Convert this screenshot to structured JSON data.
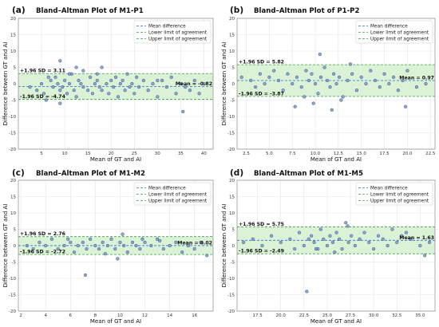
{
  "colors": {
    "point_fill": "#7f99c7",
    "point_stroke": "#2e4f8a",
    "mean_line": "#2c6fd1",
    "loa_line": "#3aa34a",
    "band_fill": "#dcf2d6",
    "grid": "#e3e3e3"
  },
  "legend_labels": [
    "Mean difference",
    "Lower limit of agreement",
    "Upper limit of agreement"
  ],
  "chart_data": [
    {
      "type": "scatter",
      "panel_label": "(a)",
      "title": "Bland–Altman Plot of M1-P1",
      "xlabel": "Mean of GT and AI",
      "ylabel": "Difference between GT and AI",
      "xlim": [
        0,
        42
      ],
      "ylim": [
        -20,
        20
      ],
      "xticks": [
        5,
        10,
        15,
        20,
        25,
        30,
        35,
        40
      ],
      "yticks": [
        -20,
        -15,
        -10,
        -5,
        0,
        5,
        10,
        15,
        20
      ],
      "mean": -0.82,
      "upper": 3.11,
      "lower": -4.74,
      "upper_label": "+1.96 SD = 3.11",
      "lower_label": "-1.96 SD = -4.74",
      "mean_label": "Mean = -0.82",
      "legend_position": "top-right",
      "grid": true,
      "x": [
        2.5,
        4,
        5,
        5.5,
        6,
        7,
        7.5,
        8,
        8.5,
        9,
        9,
        9.5,
        10,
        10.5,
        11,
        11.5,
        12,
        12.5,
        13,
        13.5,
        14,
        14,
        15,
        15.5,
        16,
        16.5,
        17,
        17.5,
        18,
        18,
        19,
        19.5,
        20,
        20.5,
        21,
        21.5,
        22,
        22.5,
        23,
        23.5,
        24,
        24.5,
        25,
        25.5,
        26,
        27,
        28,
        29,
        30,
        31,
        32,
        33,
        34,
        35,
        36,
        37,
        38,
        39,
        40,
        12.5,
        17,
        30,
        35.5,
        9,
        11,
        6.5
      ],
      "y": [
        -1,
        -2,
        0,
        -3,
        -5,
        1,
        -1,
        2,
        0,
        7,
        -2,
        -1,
        1,
        -3,
        0,
        3,
        -2,
        -4,
        1,
        0,
        -1,
        4,
        -2,
        2,
        -3,
        0,
        1,
        -1,
        5,
        -2,
        0,
        -3,
        1,
        -1,
        2,
        -4,
        0,
        1,
        -2,
        3,
        -1,
        0,
        -3,
        2,
        -1,
        1,
        -2,
        0,
        -4,
        1,
        -1,
        2,
        -3,
        0,
        -1,
        -2,
        1,
        -3,
        0,
        5,
        3,
        1,
        -8.5,
        -6,
        3,
        2
      ]
    },
    {
      "type": "scatter",
      "panel_label": "(b)",
      "title": "Bland–Altman Plot of P1-P2",
      "xlabel": "Mean of GT and AI",
      "ylabel": "Difference between GT and AI",
      "xlim": [
        1.5,
        23
      ],
      "ylim": [
        -20,
        20
      ],
      "xticks": [
        2.5,
        5.0,
        7.5,
        10.0,
        12.5,
        15.0,
        17.5,
        20.0,
        22.5
      ],
      "xtick_labels": [
        "2.5",
        "5.0",
        "7.5",
        "10.0",
        "12.5",
        "15.0",
        "17.5",
        "20.0",
        "22.5"
      ],
      "yticks": [
        -20,
        -15,
        -10,
        -5,
        0,
        5,
        10,
        15,
        20
      ],
      "mean": 0.97,
      "upper": 5.82,
      "lower": -3.87,
      "upper_label": "+1.96 SD = 5.82",
      "lower_label": "-1.96 SD = -3.87",
      "mean_label": "Mean = 0.97",
      "legend_position": "top-right",
      "grid": true,
      "x": [
        2,
        3,
        3.5,
        4,
        4.5,
        5,
        5.5,
        6,
        6.5,
        7,
        7.5,
        8,
        8.5,
        9,
        9.3,
        9.6,
        10,
        10.3,
        10.6,
        11,
        11.3,
        11.6,
        12,
        12.3,
        12.6,
        13,
        13.5,
        14,
        14.5,
        15,
        15.5,
        16,
        16.5,
        17,
        17.5,
        18,
        18.5,
        19,
        19.5,
        20,
        21,
        22,
        9.8,
        10.5,
        11.8,
        12.8,
        8.8,
        7.8,
        13.8,
        19.8
      ],
      "y": [
        2,
        1,
        -1,
        3,
        0,
        2,
        4,
        1,
        -2,
        3,
        0,
        2,
        -1,
        4,
        1,
        3,
        0,
        -3,
        2,
        5,
        1,
        -1,
        3,
        0,
        2,
        -4,
        1,
        3,
        -2,
        2,
        0,
        4,
        1,
        -1,
        3,
        0,
        2,
        -2,
        1,
        4,
        -1,
        0,
        -6,
        9,
        -8,
        -5,
        -4,
        -7,
        6,
        -7
      ]
    },
    {
      "type": "scatter",
      "panel_label": "(c)",
      "title": "Bland–Altman Plot of M1-M2",
      "xlabel": "Mean of GT and AI",
      "ylabel": "Difference between GT and AI",
      "xlim": [
        1.8,
        17.5
      ],
      "ylim": [
        -20,
        20
      ],
      "xticks": [
        2,
        4,
        6,
        8,
        10,
        12,
        14,
        16
      ],
      "yticks": [
        -20,
        -15,
        -10,
        -5,
        0,
        5,
        10,
        15,
        20
      ],
      "mean": 0.02,
      "upper": 2.76,
      "lower": -2.72,
      "upper_label": "+1.96 SD = 2.76",
      "lower_label": "-1.96 SD = -2.72",
      "mean_label": "Mean = 0.02",
      "legend_position": "top-right",
      "grid": true,
      "x": [
        2.5,
        3,
        3.5,
        4,
        4.5,
        5,
        5.5,
        6,
        6.3,
        6.6,
        7,
        7.3,
        7.6,
        8,
        8.3,
        8.6,
        9,
        9.3,
        9.6,
        10,
        10.3,
        10.6,
        11,
        11.3,
        11.6,
        12,
        12.5,
        13,
        13.5,
        14,
        14.5,
        15,
        15.5,
        16,
        16.5,
        17,
        7.2,
        10.2,
        8.8,
        11.8,
        5.8,
        9.8,
        13.2
      ],
      "y": [
        0,
        -1,
        1,
        0,
        2,
        -1,
        0,
        1,
        -2,
        0,
        1,
        -1,
        2,
        0,
        -1,
        1,
        0,
        2,
        -1,
        1,
        0,
        -2,
        1,
        0,
        -1,
        1,
        0,
        2,
        -1,
        0,
        1,
        -2,
        0,
        -1,
        1,
        -3,
        -9,
        3.5,
        -2.5,
        2,
        2,
        -4,
        1.5
      ]
    },
    {
      "type": "scatter",
      "panel_label": "(d)",
      "title": "Bland–Altman Plot of M1-M5",
      "xlabel": "Mean of GT and AI",
      "ylabel": "Difference between GT and AI",
      "xlim": [
        15.3,
        36.6
      ],
      "ylim": [
        -20,
        20
      ],
      "xticks": [
        17.5,
        20.0,
        22.5,
        25.0,
        27.5,
        30.0,
        32.5,
        35.0
      ],
      "xtick_labels": [
        "17.5",
        "20.0",
        "22.5",
        "25.0",
        "27.5",
        "30.0",
        "32.5",
        "35.0"
      ],
      "yticks": [
        -20,
        -15,
        -10,
        -5,
        0,
        5,
        10,
        15,
        20
      ],
      "mean": 1.63,
      "upper": 5.75,
      "lower": -2.49,
      "upper_label": "+1.96 SD = 5.75",
      "lower_label": "-1.96 SD = -2.49",
      "mean_label": "Mean = 1.63",
      "legend_position": "top-right",
      "grid": true,
      "x": [
        16,
        17,
        18,
        19,
        20,
        21,
        21.5,
        22,
        22.5,
        23,
        23.3,
        23.6,
        24,
        24.3,
        24.6,
        25,
        25.3,
        25.6,
        26,
        26.3,
        26.6,
        27,
        27.3,
        27.6,
        28,
        28.5,
        29,
        29.5,
        30,
        30.5,
        31,
        31.5,
        32,
        32.5,
        33,
        34,
        35,
        36,
        22.8,
        27.2,
        25.8,
        23.8,
        35.5,
        33.5
      ],
      "y": [
        1,
        2,
        0,
        3,
        1,
        2,
        -1,
        4,
        0,
        2,
        3,
        1,
        -1,
        5,
        2,
        0,
        3,
        1,
        4,
        2,
        -1,
        7,
        1,
        3,
        0,
        2,
        4,
        1,
        -1,
        3,
        2,
        0,
        5,
        1,
        3,
        2,
        0,
        1,
        -14,
        6,
        -2,
        -1,
        -3,
        4
      ]
    }
  ]
}
